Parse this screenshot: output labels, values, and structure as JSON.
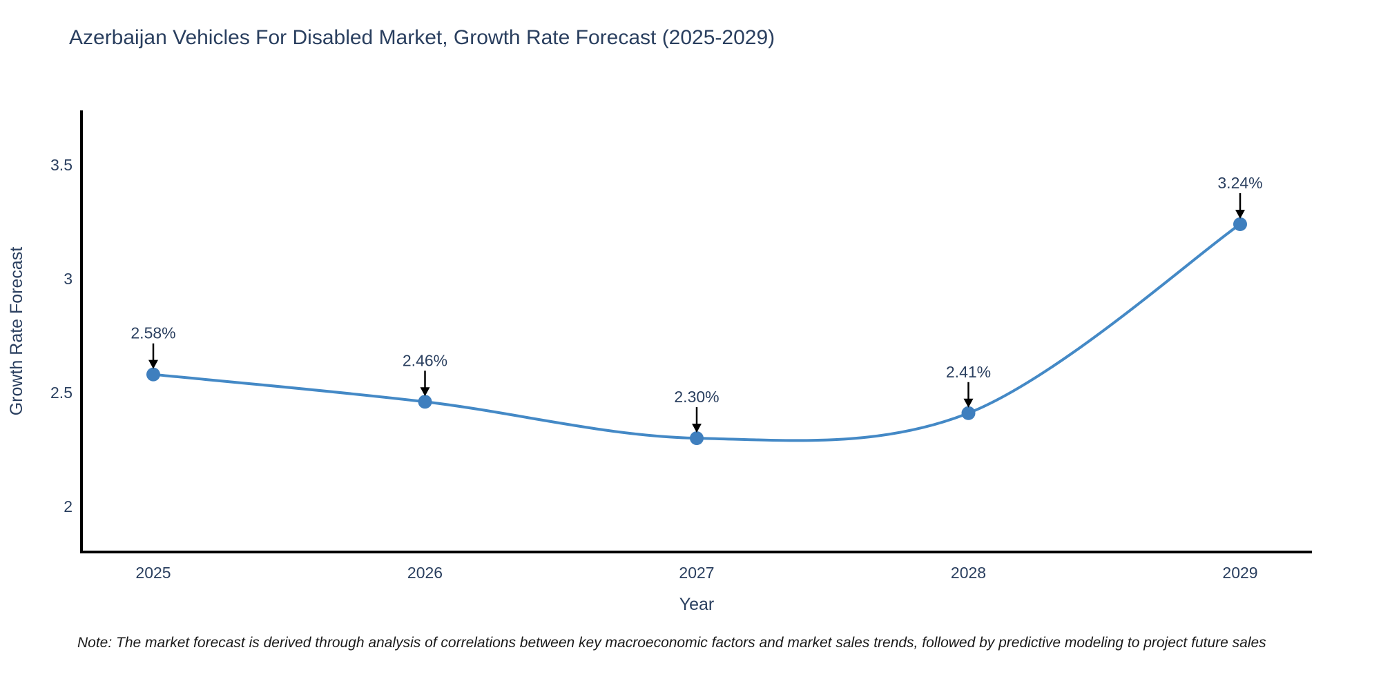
{
  "note": "Note: The market forecast is derived through analysis of correlations between key macroeconomic factors and market sales trends, followed by predictive modeling to project future sales",
  "chart_data": {
    "type": "line",
    "title": "Azerbaijan Vehicles For Disabled Market, Growth Rate Forecast (2025-2029)",
    "xlabel": "Year",
    "ylabel": "Growth Rate Forecast",
    "categories": [
      "2025",
      "2026",
      "2027",
      "2028",
      "2029"
    ],
    "values": [
      2.58,
      2.46,
      2.3,
      2.41,
      3.24
    ],
    "point_labels": [
      "2.58%",
      "2.46%",
      "2.30%",
      "2.41%",
      "3.24%"
    ],
    "yticks": [
      2,
      2.5,
      3,
      3.5
    ],
    "ytick_labels": [
      "2",
      "2.5",
      "3",
      "3.5"
    ],
    "ylim": [
      1.8,
      3.74
    ],
    "grid": false,
    "legend": "none",
    "line_shape": "spline",
    "annotation_arrows": true,
    "colors": {
      "line": "#4489c6",
      "marker": "#3f7fbe",
      "arrow": "#000000",
      "axis": "#000000",
      "text": "#2a3f5f"
    }
  }
}
